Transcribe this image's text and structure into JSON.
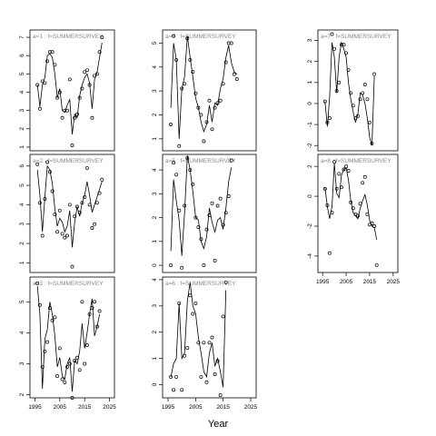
{
  "figure": {
    "xlabel": "Year"
  },
  "chart_data": [
    {
      "type": "scatter",
      "panel_label": "a=1 : f=SUMMERSURVEY",
      "xlim": [
        1993,
        2027
      ],
      "ylim": [
        0.8,
        7.4
      ],
      "xticks": [
        1995,
        2005,
        2015,
        2025
      ],
      "show_xticks": false,
      "yticks": [
        1,
        2,
        3,
        4,
        5,
        6,
        7
      ],
      "x": [
        1996,
        1997,
        1998,
        1999,
        2000,
        2001,
        2002,
        2003,
        2004,
        2005,
        2006,
        2007,
        2008,
        2009,
        2010,
        2011,
        2012,
        2013,
        2014,
        2015,
        2016,
        2017,
        2018,
        2019,
        2020,
        2021,
        2022,
        2023,
        2024
      ],
      "points": [
        4.4,
        3.1,
        4.6,
        4.5,
        5.7,
        6.2,
        6.2,
        5.5,
        3.7,
        4.0,
        2.6,
        3.0,
        3.0,
        4.7,
        1.1,
        2.6,
        2.8,
        3.7,
        4.2,
        5.1,
        5.2,
        4.4,
        2.6,
        4.9,
        5.0,
        6.2,
        7.0,
        null,
        null
      ],
      "fit": [
        4.4,
        3.2,
        4.4,
        4.8,
        6.0,
        6.1,
        5.9,
        5.0,
        3.7,
        4.2,
        3.0,
        2.9,
        3.3,
        3.6,
        1.7,
        2.8,
        2.6,
        3.8,
        4.4,
        4.8,
        5.0,
        4.5,
        3.1,
        4.7,
        5.1,
        5.9,
        6.7,
        null,
        null
      ]
    },
    {
      "type": "scatter",
      "panel_label": "a=4 : f=SUMMERSURVEY",
      "xlim": [
        1993,
        2027
      ],
      "ylim": [
        0.5,
        5.55
      ],
      "xticks": [
        1995,
        2005,
        2015,
        2025
      ],
      "show_xticks": false,
      "yticks": [
        1,
        2,
        3,
        4,
        5
      ],
      "x": [
        1996,
        1997,
        1998,
        1999,
        2000,
        2001,
        2002,
        2003,
        2004,
        2005,
        2006,
        2007,
        2008,
        2009,
        2010,
        2011,
        2012,
        2013,
        2014,
        2015,
        2016,
        2017,
        2018,
        2019,
        2020,
        2021,
        2022,
        2023
      ],
      "points": [
        1.6,
        5.3,
        4.3,
        0.7,
        3.1,
        3.3,
        5.2,
        4.3,
        3.8,
        2.9,
        2.3,
        2.0,
        0.9,
        1.7,
        2.6,
        1.4,
        2.3,
        2.5,
        2.6,
        3.3,
        4.2,
        5.0,
        5.0,
        3.7,
        3.5,
        null,
        null,
        null
      ],
      "fit": [
        2.3,
        5.0,
        4.3,
        1.0,
        3.1,
        3.6,
        5.3,
        4.4,
        3.6,
        2.7,
        2.3,
        1.7,
        1.3,
        1.6,
        2.4,
        1.7,
        2.5,
        2.4,
        3.1,
        3.5,
        4.4,
        4.9,
        4.2,
        3.8,
        3.7,
        null,
        null,
        null
      ]
    },
    {
      "type": "scatter",
      "panel_label": "a=7 : f=SUMMERSURVEY",
      "xlim": [
        1993,
        2027
      ],
      "ylim": [
        -2.25,
        3.5
      ],
      "xticks": [
        1995,
        2005,
        2015,
        2025
      ],
      "show_xticks": false,
      "yticks": [
        -2,
        -1,
        0,
        1,
        2,
        3
      ],
      "x": [
        1996,
        1997,
        1998,
        1999,
        2000,
        2001,
        2002,
        2003,
        2004,
        2005,
        2006,
        2007,
        2008,
        2009,
        2010,
        2011,
        2012,
        2013,
        2014,
        2015,
        2016,
        2017,
        2018,
        2019,
        2020,
        2021,
        2022,
        2023
      ],
      "points": [
        0.1,
        -0.9,
        -0.7,
        3.3,
        2.6,
        0.6,
        1.0,
        2.8,
        2.8,
        2.4,
        1.6,
        0.5,
        -0.1,
        -0.7,
        -0.6,
        0.2,
        0.5,
        0.9,
        0.2,
        -0.9,
        -1.9,
        1.4,
        null,
        null,
        null,
        null,
        null,
        null
      ],
      "fit": [
        0.1,
        -1.1,
        0.3,
        2.9,
        2.2,
        0.5,
        2.2,
        2.9,
        2.6,
        2.2,
        1.0,
        0.2,
        -0.4,
        -0.9,
        -0.5,
        0.5,
        0.4,
        0.0,
        -0.7,
        -1.6,
        -2.0,
        1.3,
        null,
        null,
        null,
        null,
        null,
        null
      ]
    },
    {
      "type": "scatter",
      "panel_label": "a=2 : f=SUMMERSURVEY",
      "xlim": [
        1993,
        2027
      ],
      "ylim": [
        0.5,
        6.6
      ],
      "xticks": [
        1995,
        2005,
        2015,
        2025
      ],
      "show_xticks": false,
      "yticks": [
        1,
        2,
        3,
        4,
        5,
        6
      ],
      "x": [
        1996,
        1997,
        1998,
        1999,
        2000,
        2001,
        2002,
        2003,
        2004,
        2005,
        2006,
        2007,
        2008,
        2009,
        2010,
        2011,
        2012,
        2013,
        2014,
        2015,
        2016,
        2017,
        2018,
        2019,
        2020,
        2021,
        2022,
        2023,
        2024
      ],
      "points": [
        6.1,
        4.1,
        2.4,
        4.3,
        6.2,
        5.7,
        4.7,
        3.5,
        2.6,
        3.7,
        2.5,
        2.3,
        2.4,
        4.0,
        0.8,
        3.4,
        3.9,
        3.6,
        4.1,
        4.4,
        5.9,
        4.0,
        2.8,
        3.0,
        4.1,
        4.6,
        5.3,
        null,
        null
      ],
      "fit": [
        5.8,
        4.5,
        2.6,
        4.4,
        6.0,
        5.8,
        5.1,
        3.8,
        2.9,
        3.3,
        3.1,
        2.6,
        2.9,
        3.7,
        1.8,
        3.1,
        3.9,
        3.4,
        4.1,
        4.5,
        5.2,
        4.5,
        3.6,
        4.0,
        4.4,
        4.8,
        5.2,
        null,
        null
      ]
    },
    {
      "type": "scatter",
      "panel_label": "a=5 : f=SUMMERSURVEY",
      "xlim": [
        1993,
        2027
      ],
      "ylim": [
        -0.3,
        4.65
      ],
      "xticks": [
        1995,
        2005,
        2015,
        2025
      ],
      "show_xticks": false,
      "yticks": [
        0,
        1,
        2,
        3,
        4
      ],
      "x": [
        1996,
        1997,
        1998,
        1999,
        2000,
        2001,
        2002,
        2003,
        2004,
        2005,
        2006,
        2007,
        2008,
        2009,
        2010,
        2011,
        2012,
        2013,
        2014,
        2015,
        2016,
        2017,
        2018,
        2019,
        2020,
        2021,
        2022,
        2023
      ],
      "points": [
        0.0,
        4.3,
        3.8,
        2.3,
        -0.1,
        2.5,
        4.5,
        4.0,
        3.4,
        2.0,
        1.6,
        1.1,
        0.0,
        1.5,
        2.1,
        2.6,
        0.2,
        2.5,
        2.8,
        1.7,
        2.2,
        2.9,
        4.4,
        null,
        null,
        null,
        null,
        null
      ],
      "fit": [
        0.6,
        3.6,
        2.7,
        1.9,
        0.4,
        2.2,
        4.6,
        4.0,
        3.1,
        2.0,
        1.9,
        1.0,
        0.7,
        1.2,
        2.4,
        1.8,
        1.4,
        1.9,
        2.0,
        1.5,
        2.4,
        3.5,
        4.1,
        null,
        null,
        null,
        null,
        null
      ]
    },
    {
      "type": "scatter",
      "panel_label": "a=8 : f=SUMMERSURVEY",
      "xlim": [
        1993,
        2027
      ],
      "ylim": [
        -5.1,
        2.8
      ],
      "xticks": [
        1995,
        2005,
        2015,
        2025
      ],
      "show_xticks": true,
      "yticks": [
        -4,
        -2,
        0,
        2
      ],
      "x": [
        1996,
        1997,
        1998,
        1999,
        2000,
        2001,
        2002,
        2003,
        2004,
        2005,
        2006,
        2007,
        2008,
        2009,
        2010,
        2011,
        2012,
        2013,
        2014,
        2015,
        2016,
        2017,
        2018,
        2019,
        2020,
        2021,
        2022,
        2023
      ],
      "points": [
        0.5,
        -0.6,
        -3.8,
        -1.1,
        2.3,
        0.5,
        1.5,
        0.6,
        1.8,
        2.0,
        1.7,
        -0.4,
        -0.8,
        -1.2,
        -1.3,
        -0.5,
        0.9,
        1.3,
        -1.2,
        -1.9,
        -1.8,
        -2.0,
        -4.6,
        null,
        null,
        null,
        null,
        null
      ],
      "fit": [
        0.6,
        -0.7,
        -1.5,
        -0.7,
        2.2,
        0.2,
        -0.1,
        1.4,
        1.8,
        1.9,
        1.1,
        -0.3,
        -1.1,
        -1.3,
        -1.5,
        -0.8,
        -0.3,
        0.1,
        -0.6,
        -1.6,
        -2.0,
        -2.1,
        -2.9,
        null,
        null,
        null,
        null,
        null
      ]
    },
    {
      "type": "scatter",
      "panel_label": "a=3 : f=SUMMERSURVEY",
      "xlim": [
        1993,
        2027
      ],
      "ylim": [
        1.9,
        5.8
      ],
      "xticks": [
        1995,
        2005,
        2015,
        2025
      ],
      "show_xticks": true,
      "yticks": [
        2,
        3,
        4,
        5
      ],
      "x": [
        1996,
        1997,
        1998,
        1999,
        2000,
        2001,
        2002,
        2003,
        2004,
        2005,
        2006,
        2007,
        2008,
        2009,
        2010,
        2011,
        2012,
        2013,
        2014,
        2015,
        2016,
        2017,
        2018,
        2019,
        2020,
        2021,
        2022,
        2023,
        2024
      ],
      "points": [
        5.6,
        4.9,
        2.9,
        3.4,
        3.7,
        4.8,
        4.4,
        4.5,
        2.6,
        3.5,
        2.5,
        2.4,
        2.9,
        3.0,
        1.9,
        3.1,
        3.2,
        2.8,
        5.0,
        3.0,
        3.6,
        4.6,
        4.8,
        5.0,
        4.2,
        4.7,
        null,
        null,
        null
      ],
      "fit": [
        5.5,
        4.6,
        2.2,
        3.8,
        4.1,
        5.0,
        4.6,
        3.9,
        2.9,
        3.2,
        2.6,
        2.5,
        3.0,
        3.2,
        2.1,
        3.1,
        3.0,
        3.4,
        4.3,
        3.5,
        4.0,
        4.6,
        5.1,
        3.9,
        4.2,
        4.6,
        null,
        null,
        null
      ]
    },
    {
      "type": "scatter",
      "panel_label": "a=6 : f=SUMMERSURVEY",
      "xlim": [
        1993,
        2027
      ],
      "ylim": [
        -0.5,
        4.1
      ],
      "xticks": [
        1995,
        2005,
        2015,
        2025
      ],
      "show_xticks": true,
      "yticks": [
        0,
        1,
        2,
        3,
        4
      ],
      "x": [
        1996,
        1997,
        1998,
        1999,
        2000,
        2001,
        2002,
        2003,
        2004,
        2005,
        2006,
        2007,
        2008,
        2009,
        2010,
        2011,
        2012,
        2013,
        2014,
        2015,
        2016,
        2017,
        2018,
        2019,
        2020,
        2021,
        2022,
        2023
      ],
      "points": [
        0.3,
        -0.2,
        0.3,
        3.1,
        -0.2,
        1.1,
        1.4,
        3.4,
        2.7,
        3.1,
        1.6,
        0.3,
        1.6,
        0.1,
        1.6,
        1.8,
        0.4,
        0.9,
        -0.4,
        2.6,
        3.9,
        null,
        null,
        null,
        null,
        null,
        null,
        null
      ],
      "fit": [
        0.3,
        0.8,
        1.0,
        3.1,
        1.0,
        1.2,
        3.2,
        3.9,
        3.0,
        2.7,
        1.8,
        1.2,
        0.5,
        0.3,
        1.2,
        1.6,
        0.7,
        1.0,
        0.5,
        -0.1,
        3.6,
        null,
        null,
        null,
        null,
        null,
        null,
        null
      ]
    }
  ]
}
